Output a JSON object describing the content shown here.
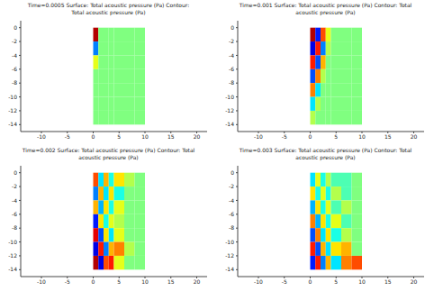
{
  "chart_data": [
    {
      "type": "heatmap",
      "title": "Time=0.0005  Surface: Total acoustic pressure (Pa)  Contour: Total acoustic pressure (Pa)",
      "xlim": [
        -14,
        22
      ],
      "xticks": [
        -10,
        -5,
        0,
        5,
        10,
        15,
        20
      ],
      "ylim": [
        -15,
        1
      ],
      "yticks": [
        -14,
        -12,
        -10,
        -8,
        -6,
        -4,
        -2,
        0
      ],
      "grid": false,
      "x_edges": [
        0,
        1,
        2,
        3,
        4,
        6,
        8,
        10
      ],
      "y_edges": [
        0,
        -2,
        -4,
        -6,
        -8,
        -10,
        -12,
        -14
      ],
      "color_range": [
        -1,
        1
      ],
      "cells": [
        [
          0.9,
          0,
          0,
          0,
          0,
          0,
          0
        ],
        [
          -0.5,
          0,
          0,
          0,
          0,
          0,
          0
        ],
        [
          0.2,
          0,
          0,
          0,
          0,
          0,
          0
        ],
        [
          0,
          0,
          0,
          0,
          0,
          0,
          0
        ],
        [
          0,
          0,
          0,
          0,
          0,
          0,
          0
        ],
        [
          0,
          0,
          0,
          0,
          0,
          0,
          0
        ],
        [
          0,
          0,
          0,
          0,
          0,
          0,
          0
        ]
      ]
    },
    {
      "type": "heatmap",
      "title": "Time=0.001  Surface: Total acoustic pressure (Pa)  Contour: Total acoustic pressure (Pa)",
      "xlim": [
        -14,
        22
      ],
      "xticks": [
        -10,
        -5,
        0,
        5,
        10,
        15,
        20
      ],
      "ylim": [
        -15,
        1
      ],
      "yticks": [
        -14,
        -12,
        -10,
        -8,
        -6,
        -4,
        -2,
        0
      ],
      "grid": false,
      "x_edges": [
        0,
        1,
        2,
        3,
        4,
        6,
        8,
        10
      ],
      "y_edges": [
        0,
        -2,
        -4,
        -6,
        -8,
        -10,
        -12,
        -14
      ],
      "color_range": [
        -1,
        1
      ],
      "cells": [
        [
          0.9,
          -0.7,
          0.6,
          0.2,
          0,
          0,
          0
        ],
        [
          -0.8,
          0.7,
          -0.5,
          0.1,
          0,
          0,
          0
        ],
        [
          0.7,
          -0.6,
          0.4,
          0,
          0,
          0,
          0
        ],
        [
          -0.6,
          0.5,
          0.1,
          0,
          0,
          0,
          0
        ],
        [
          0.5,
          -0.3,
          0,
          0,
          0,
          0,
          0
        ],
        [
          -0.3,
          0.1,
          0,
          0,
          0,
          0,
          0
        ],
        [
          0.1,
          0,
          0,
          0,
          0,
          0,
          0
        ]
      ]
    },
    {
      "type": "heatmap",
      "title": "Time=0.002  Surface: Total acoustic pressure (Pa)  Contour: Total acoustic pressure (Pa)",
      "xlim": [
        -14,
        22
      ],
      "xticks": [
        -10,
        -5,
        0,
        5,
        10,
        15,
        20
      ],
      "ylim": [
        -15,
        1
      ],
      "yticks": [
        -14,
        -12,
        -10,
        -8,
        -6,
        -4,
        -2,
        0
      ],
      "grid": false,
      "x_edges": [
        0,
        1,
        2,
        3,
        4,
        6,
        8,
        10
      ],
      "y_edges": [
        0,
        -2,
        -4,
        -6,
        -8,
        -10,
        -12,
        -14
      ],
      "color_range": [
        -1,
        1
      ],
      "cells": [
        [
          0.6,
          -0.3,
          0.4,
          -0.2,
          0.3,
          0.1,
          0
        ],
        [
          -0.5,
          0.4,
          -0.3,
          0.3,
          -0.2,
          0,
          0
        ],
        [
          0.4,
          -0.4,
          0.3,
          -0.2,
          0.2,
          0,
          0
        ],
        [
          -0.7,
          0.3,
          -0.2,
          0.2,
          0.1,
          0,
          0
        ],
        [
          0.8,
          -0.6,
          0.3,
          -0.3,
          0.2,
          0,
          0
        ],
        [
          -0.8,
          0.7,
          -0.5,
          0.4,
          0.5,
          0.1,
          0
        ],
        [
          0.9,
          -0.8,
          0.6,
          0.7,
          0.2,
          0,
          0
        ]
      ]
    },
    {
      "type": "heatmap",
      "title": "Time=0.003  Surface: Total acoustic pressure (Pa)  Contour: Total acoustic pressure (Pa)",
      "xlim": [
        -14,
        22
      ],
      "xticks": [
        -10,
        -5,
        0,
        5,
        10,
        15,
        20
      ],
      "ylim": [
        -15,
        1
      ],
      "yticks": [
        -14,
        -12,
        -10,
        -8,
        -6,
        -4,
        -2,
        0
      ],
      "grid": false,
      "x_edges": [
        0,
        1,
        2,
        3,
        4,
        6,
        8,
        10
      ],
      "y_edges": [
        0,
        -2,
        -4,
        -6,
        -8,
        -10,
        -12,
        -14
      ],
      "color_range": [
        -1,
        1
      ],
      "cells": [
        [
          -0.3,
          0.2,
          -0.2,
          0.1,
          -0.1,
          -0.1,
          0
        ],
        [
          0.3,
          -0.2,
          0.2,
          -0.2,
          0.1,
          -0.1,
          0
        ],
        [
          -0.4,
          0.3,
          -0.2,
          0.2,
          -0.1,
          0.1,
          0
        ],
        [
          0.5,
          -0.4,
          0.3,
          -0.2,
          0.2,
          -0.1,
          0
        ],
        [
          -0.6,
          0.5,
          -0.3,
          0.3,
          -0.2,
          0.1,
          0
        ],
        [
          0.7,
          -0.6,
          0.4,
          -0.3,
          0.3,
          0.4,
          0
        ],
        [
          -0.7,
          0.7,
          -0.5,
          0.4,
          -0.3,
          0.5,
          0.6
        ]
      ]
    }
  ]
}
